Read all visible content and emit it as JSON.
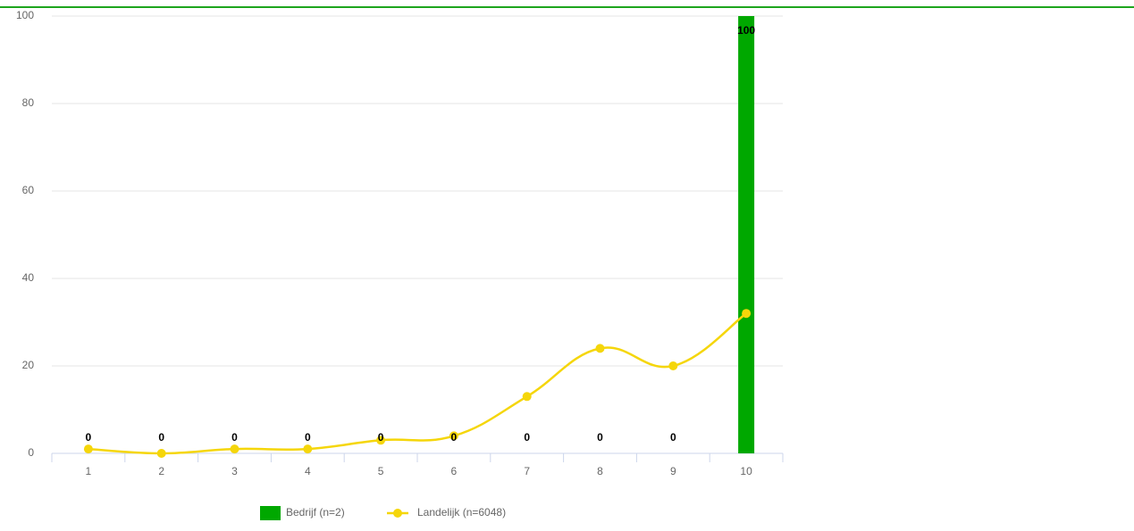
{
  "chart_data": {
    "type": "bar-line",
    "categories": [
      "1",
      "2",
      "3",
      "4",
      "5",
      "6",
      "7",
      "8",
      "9",
      "10"
    ],
    "series": [
      {
        "name": "Bedrijf (n=2)",
        "type": "bar",
        "color": "#00a800",
        "values": [
          0,
          0,
          0,
          0,
          0,
          0,
          0,
          0,
          0,
          100
        ]
      },
      {
        "name": "Landelijk (n=6048)",
        "type": "line",
        "color": "#f5d60a",
        "values": [
          1,
          0,
          1,
          1,
          3,
          4,
          13,
          24,
          20,
          32
        ]
      }
    ],
    "ylim": [
      0,
      100
    ],
    "yticks": [
      0,
      20,
      40,
      60,
      80,
      100
    ],
    "grid": true
  }
}
